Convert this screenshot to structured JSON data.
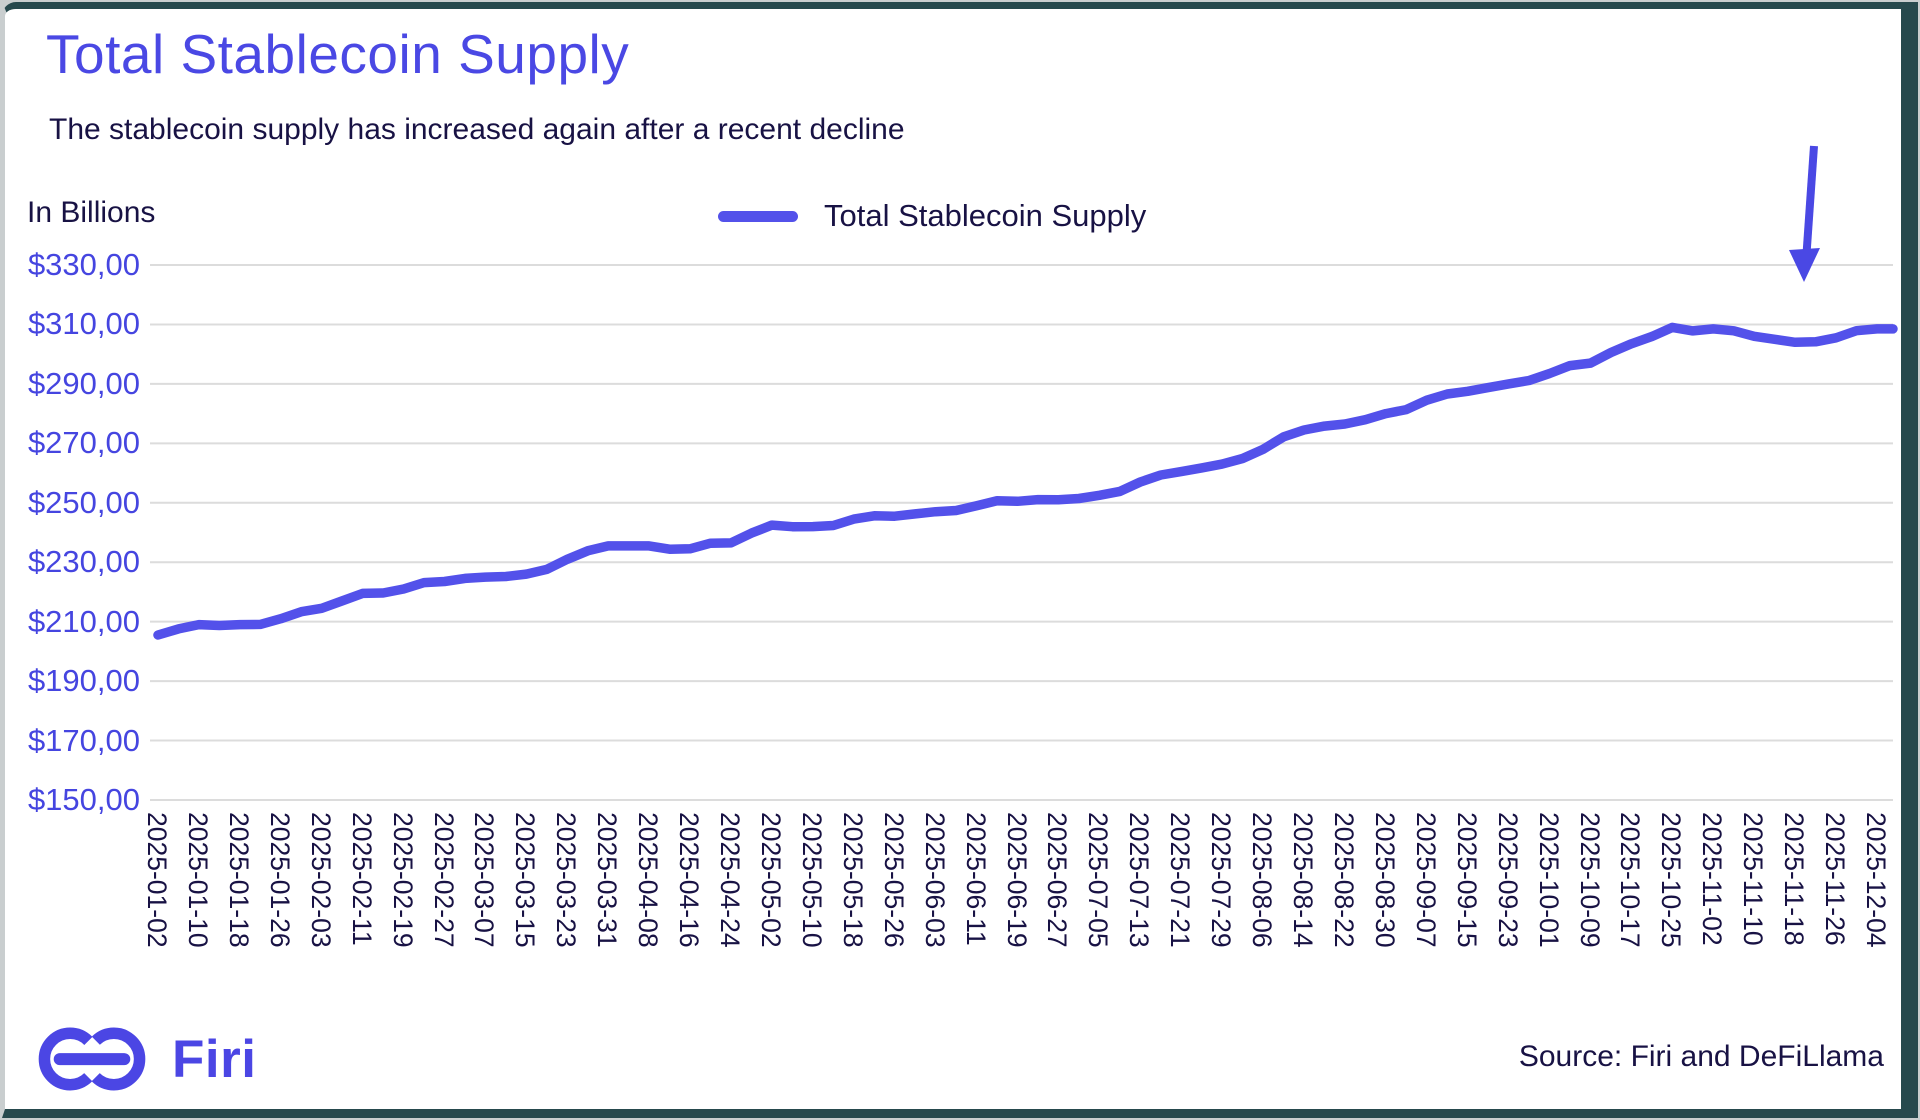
{
  "header": {
    "title": "Total Stablecoin Supply",
    "subtitle": "The stablecoin supply has increased again after a recent decline"
  },
  "axes": {
    "unit_label": "In Billions",
    "y_ticks": [
      "$330,00",
      "$310,00",
      "$290,00",
      "$270,00",
      "$250,00",
      "$230,00",
      "$210,00",
      "$190,00",
      "$170,00",
      "$150,00"
    ]
  },
  "legend": {
    "label": "Total Stablecoin Supply"
  },
  "footer": {
    "brand": "Firi",
    "source": "Source: Firi and DeFiLlama"
  },
  "colors": {
    "accent_blue": "#4a48e4",
    "line_blue": "#5351ea",
    "axis_label_blue": "#4545e0",
    "dark_text": "#181244",
    "gridline": "#dcdcdc",
    "frame_teal": "#26494d"
  },
  "chart_data": {
    "type": "line",
    "title": "Total Stablecoin Supply",
    "xlabel": "",
    "ylabel": "In Billions (USD)",
    "ylim": [
      150,
      330
    ],
    "ytick_step": 20,
    "grid": true,
    "legend_position": "top-center",
    "categories": [
      "2025-01-02",
      "2025-01-10",
      "2025-01-18",
      "2025-01-26",
      "2025-02-03",
      "2025-02-11",
      "2025-02-19",
      "2025-02-27",
      "2025-03-07",
      "2025-03-15",
      "2025-03-23",
      "2025-03-31",
      "2025-04-08",
      "2025-04-16",
      "2025-04-24",
      "2025-05-02",
      "2025-05-10",
      "2025-05-18",
      "2025-05-26",
      "2025-06-03",
      "2025-06-11",
      "2025-06-19",
      "2025-06-27",
      "2025-07-05",
      "2025-07-13",
      "2025-07-21",
      "2025-07-29",
      "2025-08-06",
      "2025-08-14",
      "2025-08-22",
      "2025-08-30",
      "2025-09-07",
      "2025-09-15",
      "2025-09-23",
      "2025-10-01",
      "2025-10-09",
      "2025-10-17",
      "2025-10-25",
      "2025-11-02",
      "2025-11-10",
      "2025-11-18",
      "2025-11-26",
      "2025-12-04"
    ],
    "series": [
      {
        "name": "Total Stablecoin Supply",
        "values": [
          205.5,
          209,
          209,
          211,
          214.5,
          219.5,
          221,
          223.5,
          225,
          226,
          231,
          235.5,
          235.5,
          234.5,
          236.5,
          242.5,
          242,
          244.5,
          245.5,
          247,
          249,
          250.5,
          251,
          252.5,
          257,
          260.5,
          263,
          268,
          274.5,
          276.5,
          280,
          284.5,
          287.5,
          290,
          293.5,
          297,
          303.5,
          309,
          308.5,
          306,
          304,
          305.5,
          308.5
        ]
      }
    ],
    "annotations": [
      {
        "type": "down-arrow",
        "near_category": "2025-11-18"
      }
    ]
  }
}
